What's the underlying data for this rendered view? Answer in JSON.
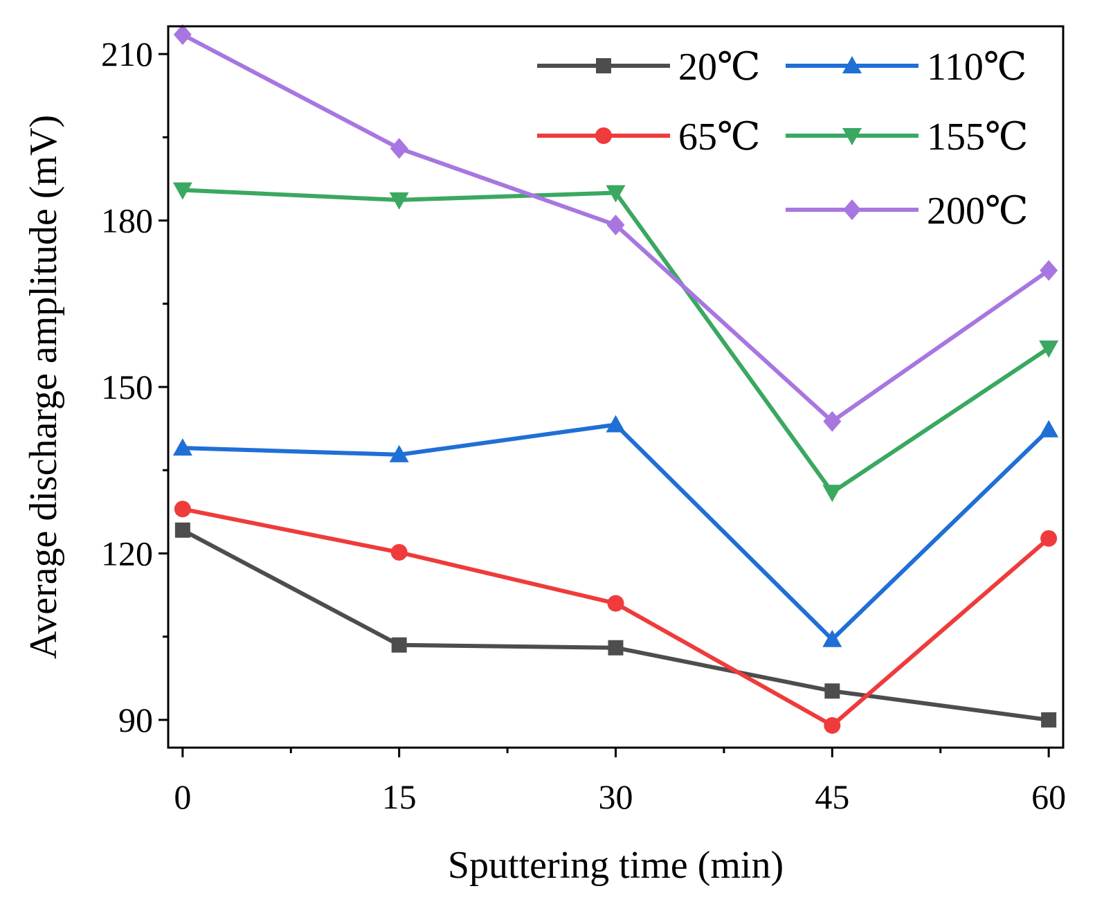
{
  "chart_data": {
    "type": "line",
    "title": "",
    "xlabel": "Sputtering time (min)",
    "ylabel": "Average discharge amplitude (mV)",
    "x": [
      0,
      15,
      30,
      45,
      60
    ],
    "xlim": [
      -1,
      61
    ],
    "ylim": [
      85,
      215
    ],
    "xticks": [
      0,
      15,
      30,
      45,
      60
    ],
    "xtick_labels": [
      "0",
      "15",
      "30",
      "45",
      "60"
    ],
    "xminor": [
      7.5,
      22.5,
      37.5,
      52.5
    ],
    "yticks": [
      90,
      120,
      150,
      180,
      210
    ],
    "ytick_labels": [
      "90",
      "120",
      "150",
      "180",
      "210"
    ],
    "yminor": [
      105,
      135,
      165,
      195
    ],
    "grid": false,
    "legend_position": "top-right",
    "series": [
      {
        "name": "20℃",
        "color": "#4d4d4d",
        "marker": "square",
        "values": [
          124.2,
          103.5,
          103.0,
          95.2,
          90.0
        ]
      },
      {
        "name": "65℃",
        "color": "#ef3b3b",
        "marker": "circle",
        "values": [
          128.0,
          120.2,
          111.0,
          89.0,
          122.7
        ]
      },
      {
        "name": "110℃",
        "color": "#1f6fd6",
        "marker": "triangle-up",
        "values": [
          139.0,
          137.8,
          143.2,
          104.5,
          142.3
        ]
      },
      {
        "name": "155℃",
        "color": "#3aa860",
        "marker": "triangle-down",
        "values": [
          185.5,
          183.7,
          185.0,
          131.0,
          157.0
        ]
      },
      {
        "name": "200℃",
        "color": "#a876e0",
        "marker": "diamond",
        "values": [
          213.5,
          193.0,
          179.2,
          143.8,
          171.0
        ]
      }
    ]
  }
}
